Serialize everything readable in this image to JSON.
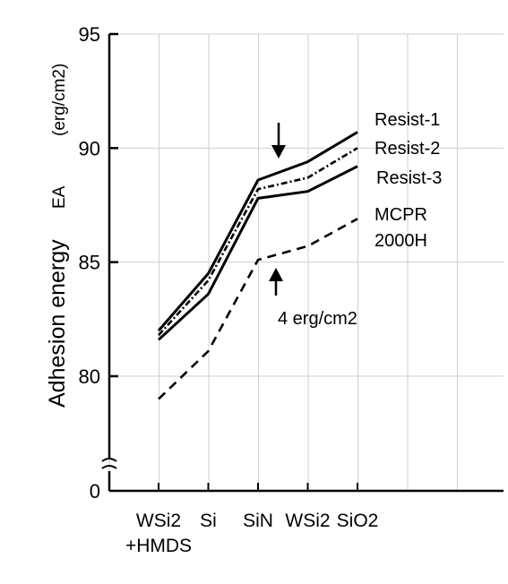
{
  "chart_data": {
    "type": "line",
    "title": "",
    "xlabel": "",
    "ylabel": "Adhesion energy",
    "ylabel_symbol": "EA",
    "ylabel_unit": "(erg/cm2)",
    "y_ticks": [
      {
        "value": 95,
        "label": "95"
      },
      {
        "value": 90,
        "label": "90"
      },
      {
        "value": 85,
        "label": "85"
      },
      {
        "value": 80,
        "label": "80"
      }
    ],
    "axis_zero_label": "0",
    "y_axis_break": true,
    "ylim": [
      75,
      95
    ],
    "categories": [
      "WSi2 +HMDS",
      "Si",
      "SiN",
      "WSi2",
      "SiO2"
    ],
    "category_labels": [
      {
        "lines": [
          "WSi2",
          "+HMDS"
        ]
      },
      {
        "lines": [
          "Si"
        ]
      },
      {
        "lines": [
          "SiN"
        ]
      },
      {
        "lines": [
          "WSi2"
        ]
      },
      {
        "lines": [
          "SiO2"
        ]
      }
    ],
    "series": [
      {
        "name": "Resist-1",
        "values": [
          82.0,
          84.5,
          88.6,
          89.4,
          90.7
        ],
        "style": "solid",
        "color": "#000000"
      },
      {
        "name": "Resist-2",
        "values": [
          81.8,
          84.2,
          88.2,
          88.7,
          90.0
        ],
        "style": "dash-dot",
        "color": "#000000"
      },
      {
        "name": "Resist-3",
        "values": [
          81.6,
          83.6,
          87.8,
          88.1,
          89.2
        ],
        "style": "solid",
        "color": "#000000"
      },
      {
        "name": "MCPR 2000H",
        "label_lines": [
          "MCPR",
          "2000H"
        ],
        "values": [
          79.0,
          81.1,
          85.1,
          85.7,
          86.9
        ],
        "style": "dashed",
        "color": "#000000"
      }
    ],
    "annotation": {
      "text": "4 erg/cm2",
      "description": "difference at SiN shown by arrows"
    },
    "grid": true,
    "legend": "right"
  }
}
